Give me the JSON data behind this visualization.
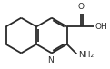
{
  "bond_color": "#2a2a2a",
  "bg_color": "#ffffff",
  "bond_width": 1.3,
  "figsize": [
    1.21,
    0.76
  ],
  "dpi": 100,
  "atoms": {
    "N_label": "N",
    "NH2_label": "NH₂",
    "O_label": "O",
    "OH_label": "OH"
  }
}
